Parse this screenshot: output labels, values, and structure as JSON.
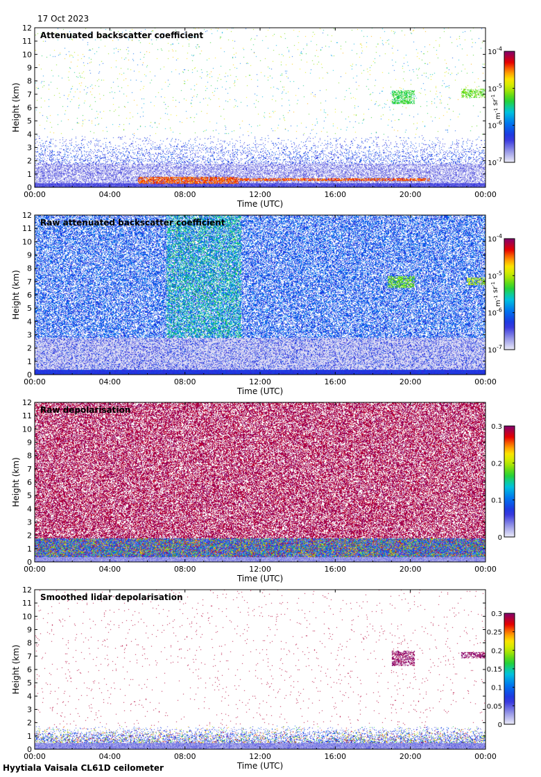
{
  "date": "17 Oct 2023",
  "footer": "Hyytiala Vaisala CL61D ceilometer",
  "chart_data": [
    {
      "type": "heatmap",
      "title": "Attenuated backscatter coefficient",
      "xlabel": "Time (UTC)",
      "ylabel": "Height (km)",
      "xticks": [
        "00:00",
        "04:00",
        "08:00",
        "12:00",
        "16:00",
        "20:00",
        "00:00"
      ],
      "yticks": [
        "0",
        "1",
        "2",
        "3",
        "4",
        "5",
        "6",
        "7",
        "8",
        "9",
        "10",
        "11",
        "12"
      ],
      "ylim": [
        0,
        12
      ],
      "xlim_hours": [
        0,
        24
      ],
      "colorbar": {
        "scale": "log",
        "range": [
          1e-07,
          0.0001
        ],
        "ticks": [
          "10^-7",
          "10^-6",
          "10^-5",
          "10^-4"
        ],
        "unit": "m^-1 sr^-1"
      },
      "features": [
        {
          "kind": "cloud",
          "t": [
            19.0,
            20.2
          ],
          "h": [
            6.3,
            7.3
          ],
          "level": 0.55
        },
        {
          "kind": "cloud",
          "t": [
            22.7,
            24.0
          ],
          "h": [
            6.8,
            7.4
          ],
          "level": 0.6
        },
        {
          "kind": "bl_top",
          "t": [
            5.5,
            10.8
          ],
          "h": [
            0.3,
            0.8
          ],
          "level": 0.85
        },
        {
          "kind": "bl_top",
          "t": [
            10.9,
            21.0
          ],
          "h": [
            0.5,
            0.7
          ],
          "level": 0.85
        }
      ]
    },
    {
      "type": "heatmap",
      "title": "Raw attenuated backscatter coefficient",
      "xlabel": "Time (UTC)",
      "ylabel": "Height (km)",
      "xticks": [
        "00:00",
        "04:00",
        "08:00",
        "12:00",
        "16:00",
        "20:00",
        "00:00"
      ],
      "yticks": [
        "0",
        "1",
        "2",
        "3",
        "4",
        "5",
        "6",
        "7",
        "8",
        "9",
        "10",
        "11",
        "12"
      ],
      "ylim": [
        0,
        12
      ],
      "xlim_hours": [
        0,
        24
      ],
      "colorbar": {
        "scale": "log",
        "range": [
          1e-07,
          0.0001
        ],
        "ticks": [
          "10^-7",
          "10^-6",
          "10^-5",
          "10^-4"
        ],
        "unit": "m^-1 sr^-1"
      },
      "features": [
        {
          "kind": "cloud",
          "t": [
            18.8,
            20.2
          ],
          "h": [
            6.6,
            7.4
          ],
          "level": 0.6
        },
        {
          "kind": "cloud",
          "t": [
            23.0,
            24.0
          ],
          "h": [
            6.8,
            7.3
          ],
          "level": 0.65
        }
      ]
    },
    {
      "type": "heatmap",
      "title": "Raw depolarisation",
      "xlabel": "Time (UTC)",
      "ylabel": "Height (km)",
      "xticks": [
        "00:00",
        "04:00",
        "08:00",
        "12:00",
        "16:00",
        "20:00",
        "00:00"
      ],
      "yticks": [
        "0",
        "1",
        "2",
        "3",
        "4",
        "5",
        "6",
        "7",
        "8",
        "9",
        "10",
        "11",
        "12"
      ],
      "ylim": [
        0,
        12
      ],
      "xlim_hours": [
        0,
        24
      ],
      "colorbar": {
        "scale": "linear",
        "range": [
          0,
          0.3
        ],
        "ticks": [
          "0",
          "0.1",
          "0.2",
          "0.3"
        ]
      }
    },
    {
      "type": "heatmap",
      "title": "Smoothed lidar depolarisation",
      "xlabel": "Time (UTC)",
      "ylabel": "Height (km)",
      "xticks": [
        "00:00",
        "04:00",
        "08:00",
        "12:00",
        "16:00",
        "20:00",
        "00:00"
      ],
      "yticks": [
        "0",
        "1",
        "2",
        "3",
        "4",
        "5",
        "6",
        "7",
        "8",
        "9",
        "10",
        "11",
        "12"
      ],
      "ylim": [
        0,
        12
      ],
      "xlim_hours": [
        0,
        24
      ],
      "colorbar": {
        "scale": "linear",
        "range": [
          0,
          0.3
        ],
        "ticks": [
          "0",
          "0.05",
          "0.1",
          "0.15",
          "0.2",
          "0.25",
          "0.3"
        ]
      },
      "features": [
        {
          "kind": "cloud",
          "t": [
            19.0,
            20.2
          ],
          "h": [
            6.3,
            7.4
          ],
          "level": 1.0
        },
        {
          "kind": "cloud",
          "t": [
            22.7,
            24.0
          ],
          "h": [
            6.9,
            7.3
          ],
          "level": 1.0
        }
      ]
    }
  ]
}
